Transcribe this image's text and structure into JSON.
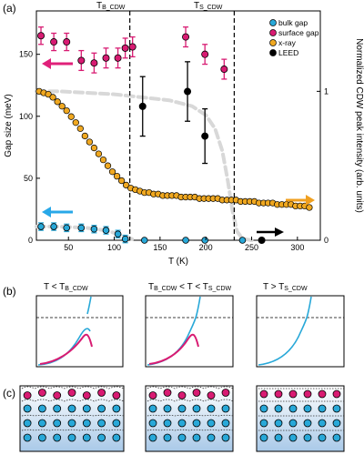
{
  "labels": {
    "panel_a": "(a)",
    "panel_b": "(b)",
    "panel_c": "(c)",
    "tb": "T",
    "tb_sub": "B_CDW",
    "ts": "T",
    "ts_sub": "S_CDW",
    "b1_main": "T < T",
    "b1_sub": "B_CDW",
    "b2_main_1": "T",
    "b2_sub_1": "B_CDW",
    "b2_main_2": " < T < T",
    "b2_sub_2": "S_CDW",
    "b3_main": "T > T",
    "b3_sub": "S_CDW"
  },
  "colors": {
    "bulk": "#28a8d8",
    "surface": "#d81b72",
    "xray": "#f0a820",
    "leed": "#000000",
    "dashed_fit": "#d8d8d8",
    "arrow_pink": "#e0207a",
    "arrow_blue": "#28a8e8",
    "arrow_orange": "#f0a020",
    "arrow_black": "#000000"
  },
  "chart_data": {
    "type": "scatter",
    "xlabel": "T (K)",
    "ylabel": "Gap size (meV)",
    "y2label": "Normalized CDW peak intensity (arb. units)",
    "xlim": [
      15,
      325
    ],
    "ylim": [
      0,
      185
    ],
    "y2lim": [
      0,
      1.54
    ],
    "xticks": [
      50,
      100,
      150,
      200,
      250,
      300
    ],
    "yticks": [
      0,
      50,
      100,
      150
    ],
    "y2ticks": [
      0,
      1
    ],
    "vlines": [
      117,
      231
    ],
    "legend": {
      "position": "top-right",
      "entries": [
        "bulk gap",
        "surface gap",
        "x-ray",
        "LEED"
      ]
    },
    "series": [
      {
        "name": "surface gap",
        "axis": "left",
        "points": [
          {
            "x": 20,
            "y": 165,
            "err": 7
          },
          {
            "x": 34,
            "y": 160,
            "err": 7
          },
          {
            "x": 48,
            "y": 160,
            "err": 7
          },
          {
            "x": 64,
            "y": 145,
            "err": 8
          },
          {
            "x": 78,
            "y": 143,
            "err": 8
          },
          {
            "x": 91,
            "y": 147,
            "err": 8
          },
          {
            "x": 104,
            "y": 147,
            "err": 8
          },
          {
            "x": 112,
            "y": 155,
            "err": 8
          },
          {
            "x": 120,
            "y": 156,
            "err": 8
          },
          {
            "x": 178,
            "y": 164,
            "err": 8
          },
          {
            "x": 199,
            "y": 150,
            "err": 8
          },
          {
            "x": 220,
            "y": 138,
            "err": 8
          }
        ]
      },
      {
        "name": "LEED",
        "axis": "left",
        "points": [
          {
            "x": 131,
            "y": 108,
            "err": 24
          },
          {
            "x": 180,
            "y": 120,
            "err": 24
          },
          {
            "x": 199,
            "y": 84,
            "err": 22
          },
          {
            "x": 261,
            "y": 0,
            "err": 0
          }
        ]
      },
      {
        "name": "bulk gap",
        "axis": "left",
        "points": [
          {
            "x": 20,
            "y": 11,
            "err": 3
          },
          {
            "x": 34,
            "y": 11,
            "err": 3
          },
          {
            "x": 48,
            "y": 10,
            "err": 3
          },
          {
            "x": 64,
            "y": 10,
            "err": 3
          },
          {
            "x": 78,
            "y": 9,
            "err": 3
          },
          {
            "x": 91,
            "y": 8,
            "err": 3
          },
          {
            "x": 104,
            "y": 5,
            "err": 3
          },
          {
            "x": 112,
            "y": 1,
            "err": 3
          },
          {
            "x": 133,
            "y": 0,
            "err": 0
          },
          {
            "x": 178,
            "y": 0,
            "err": 0
          },
          {
            "x": 199,
            "y": 0,
            "err": 0
          },
          {
            "x": 240,
            "y": 0,
            "err": 0
          }
        ]
      },
      {
        "name": "x-ray",
        "axis": "right",
        "x": [
          18,
          23,
          28,
          33,
          38,
          43,
          48,
          53,
          58,
          63,
          68,
          73,
          78,
          83,
          88,
          93,
          98,
          103,
          108,
          113,
          118,
          123,
          128,
          133,
          138,
          143,
          148,
          153,
          158,
          163,
          168,
          173,
          178,
          183,
          188,
          193,
          198,
          203,
          208,
          213,
          218,
          223,
          228,
          233,
          238,
          243,
          248,
          253,
          258,
          263,
          268,
          273,
          278,
          283,
          288,
          293,
          298,
          303,
          308,
          313
        ],
        "y": [
          1.0,
          0.99,
          0.98,
          0.96,
          0.93,
          0.9,
          0.87,
          0.83,
          0.79,
          0.75,
          0.7,
          0.66,
          0.62,
          0.58,
          0.54,
          0.5,
          0.46,
          0.43,
          0.4,
          0.37,
          0.35,
          0.34,
          0.33,
          0.32,
          0.32,
          0.31,
          0.31,
          0.3,
          0.3,
          0.3,
          0.3,
          0.29,
          0.29,
          0.29,
          0.29,
          0.28,
          0.28,
          0.28,
          0.28,
          0.28,
          0.27,
          0.27,
          0.27,
          0.27,
          0.26,
          0.26,
          0.26,
          0.26,
          0.25,
          0.25,
          0.25,
          0.25,
          0.24,
          0.24,
          0.24,
          0.24,
          0.23,
          0.23,
          0.23,
          0.22
        ]
      },
      {
        "name": "fit",
        "axis": "right",
        "x": [
          15,
          40,
          70,
          100,
          130,
          160,
          185,
          200,
          210,
          218,
          224,
          229,
          234,
          240,
          250
        ],
        "y": [
          1.0,
          1.0,
          0.99,
          0.98,
          0.96,
          0.94,
          0.9,
          0.84,
          0.75,
          0.6,
          0.4,
          0.2,
          0.06,
          0.01,
          0.0
        ]
      },
      {
        "name": "bulk fit",
        "axis": "left",
        "x": [
          15,
          40,
          70,
          90,
          105,
          115,
          123
        ],
        "y": [
          11,
          11,
          10,
          8,
          5,
          2,
          0
        ]
      }
    ]
  }
}
